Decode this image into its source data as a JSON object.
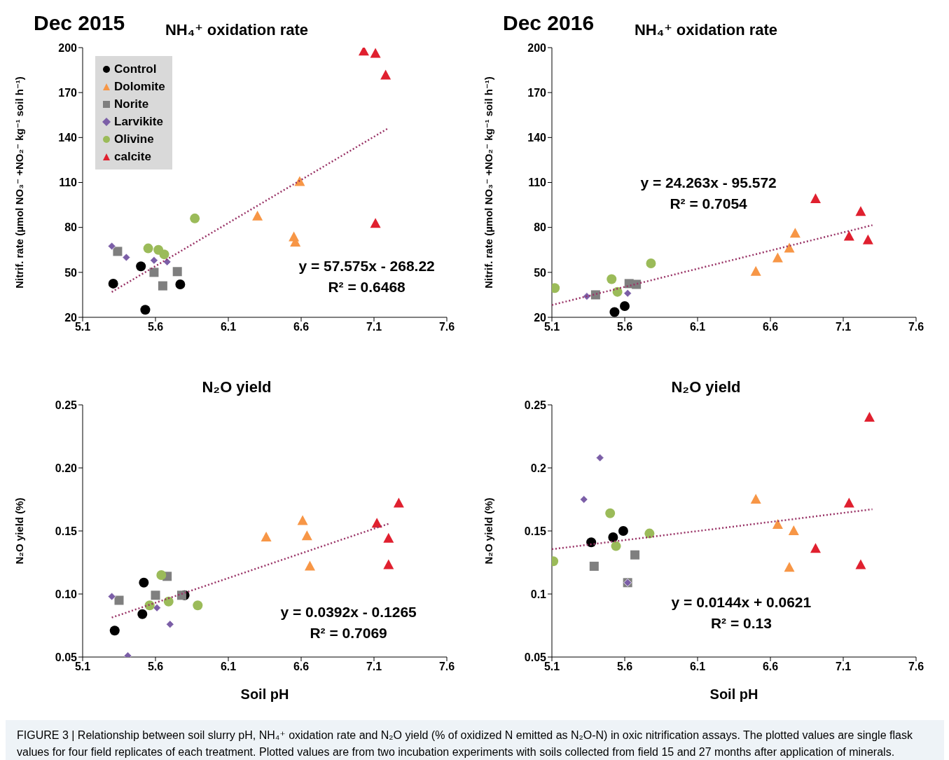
{
  "chart_data": [
    {
      "type": "scatter",
      "subtitle": "Dec 2015",
      "title": "NH₄⁺ oxidation rate",
      "ylabel": "Nitrif. rate (µmol NO₃⁻ +NO₂⁻ kg⁻¹ soil h⁻¹)",
      "xlim": [
        5.1,
        7.6
      ],
      "xticks": [
        5.1,
        5.6,
        6.1,
        6.6,
        7.1,
        7.6
      ],
      "ylim": [
        20,
        200
      ],
      "yticks": [
        20,
        50,
        80,
        110,
        140,
        170,
        200
      ],
      "legend": "top left",
      "series": [
        {
          "name": "Control",
          "color": "#000000",
          "marker": "circle",
          "x": [
            5.31,
            5.5,
            5.53,
            5.77
          ],
          "values": [
            42.5,
            54,
            25,
            42
          ]
        },
        {
          "name": "Dolomite",
          "color": "#f79646",
          "marker": "triangle",
          "x": [
            6.3,
            6.55,
            6.56,
            6.59
          ],
          "values": [
            87.5,
            73.5,
            70,
            110.5
          ]
        },
        {
          "name": "Norite",
          "color": "#7f7f7f",
          "marker": "square",
          "x": [
            5.34,
            5.59,
            5.65,
            5.75
          ],
          "values": [
            64,
            50,
            41,
            50.5
          ]
        },
        {
          "name": "Larvikite",
          "color": "#7b5ea7",
          "marker": "diamond",
          "x": [
            5.3,
            5.4,
            5.59,
            5.68
          ],
          "values": [
            67.5,
            60,
            58,
            57
          ]
        },
        {
          "name": "Olivine",
          "color": "#9bbb59",
          "marker": "circle",
          "x": [
            5.55,
            5.62,
            5.66,
            5.87
          ],
          "values": [
            66,
            65,
            62,
            86
          ]
        },
        {
          "name": "calcite",
          "color": "#e0202f",
          "marker": "triangle",
          "x": [
            7.03,
            7.11,
            7.18,
            7.11
          ],
          "values": [
            197.5,
            196,
            181.5,
            82.5
          ]
        },
        {
          "type": "line",
          "color": "#993366",
          "marker": "none",
          "line_style": "dotted",
          "x": [
            5.3,
            7.2
          ],
          "values": [
            36.9,
            146.3
          ]
        }
      ],
      "annotations": [
        "y = 57.575x - 268.22",
        "R² = 0.6468"
      ]
    },
    {
      "type": "scatter",
      "subtitle": "Dec 2016",
      "title": "NH₄⁺ oxidation rate",
      "ylabel": "Nitrif. rate (µmol NO₃⁻ +NO₂⁻ kg⁻¹ soil h⁻¹)",
      "xlim": [
        5.1,
        7.6
      ],
      "xticks": [
        5.1,
        5.6,
        6.1,
        6.6,
        7.1,
        7.6
      ],
      "ylim": [
        20,
        200
      ],
      "yticks": [
        20,
        50,
        80,
        110,
        140,
        170,
        200
      ],
      "series": [
        {
          "color": "#000000",
          "marker": "circle",
          "x": [
            5.53,
            5.6
          ],
          "values": [
            23.5,
            27.5
          ]
        },
        {
          "color": "#f79646",
          "marker": "triangle",
          "x": [
            6.5,
            6.65,
            6.73,
            6.77
          ],
          "values": [
            50.5,
            59.5,
            66,
            76
          ]
        },
        {
          "color": "#7f7f7f",
          "marker": "square",
          "x": [
            5.4,
            5.63,
            5.68
          ],
          "values": [
            35,
            42.5,
            42
          ]
        },
        {
          "color": "#7b5ea7",
          "marker": "diamond",
          "x": [
            5.34,
            5.62
          ],
          "values": [
            34,
            36
          ]
        },
        {
          "color": "#9bbb59",
          "marker": "circle",
          "x": [
            5.12,
            5.51,
            5.55,
            5.78
          ],
          "values": [
            39.5,
            45.5,
            37,
            56
          ]
        },
        {
          "color": "#e0202f",
          "marker": "triangle",
          "x": [
            6.91,
            7.22,
            7.14,
            7.27
          ],
          "values": [
            99,
            90.5,
            74,
            71.5
          ]
        },
        {
          "type": "line",
          "color": "#993366",
          "marker": "none",
          "line_style": "dotted",
          "x": [
            5.1,
            7.3
          ],
          "values": [
            28.2,
            81.5
          ]
        }
      ],
      "annotations": [
        "y = 24.263x - 95.572",
        "R² = 0.7054"
      ]
    },
    {
      "type": "scatter",
      "title": "N₂O yield",
      "xlabel": "Soil pH",
      "ylabel": "N₂O yield (%)",
      "xlim": [
        5.1,
        7.6
      ],
      "xticks": [
        5.1,
        5.6,
        6.1,
        6.6,
        7.1,
        7.6
      ],
      "ylim": [
        0.05,
        0.25
      ],
      "yticks": [
        0.05,
        {
          "value": 0.1,
          "label": "0.10"
        },
        0.15,
        {
          "value": 0.2,
          "label": "0.20"
        },
        0.25
      ],
      "series": [
        {
          "color": "#000000",
          "marker": "circle",
          "x": [
            5.32,
            5.52,
            5.51,
            5.8
          ],
          "values": [
            0.071,
            0.109,
            0.084,
            0.099
          ]
        },
        {
          "color": "#f79646",
          "marker": "triangle",
          "x": [
            6.36,
            6.61,
            6.64,
            6.66
          ],
          "values": [
            0.145,
            0.158,
            0.146,
            0.122
          ]
        },
        {
          "color": "#7f7f7f",
          "marker": "square",
          "x": [
            5.35,
            5.6,
            5.68,
            5.78
          ],
          "values": [
            0.095,
            0.099,
            0.114,
            0.099
          ]
        },
        {
          "color": "#7b5ea7",
          "marker": "diamond",
          "x": [
            5.3,
            5.41,
            5.61,
            5.7
          ],
          "values": [
            0.098,
            0.051,
            0.089,
            0.076
          ]
        },
        {
          "color": "#9bbb59",
          "marker": "circle",
          "x": [
            5.56,
            5.64,
            5.69,
            5.89
          ],
          "values": [
            0.091,
            0.115,
            0.094,
            0.091
          ]
        },
        {
          "color": "#e0202f",
          "marker": "triangle",
          "x": [
            7.12,
            7.27,
            7.2,
            7.2
          ],
          "values": [
            0.156,
            0.172,
            0.144,
            0.123
          ]
        },
        {
          "type": "line",
          "color": "#993366",
          "marker": "none",
          "line_style": "dotted",
          "x": [
            5.3,
            7.2
          ],
          "values": [
            0.0813,
            0.1557
          ]
        }
      ],
      "annotations": [
        "y = 0.0392x - 0.1265",
        "R² = 0.7069"
      ]
    },
    {
      "type": "scatter",
      "title": "N₂O yield",
      "xlabel": "Soil pH",
      "ylabel": "N₂O yield (%)",
      "xlim": [
        5.1,
        7.6
      ],
      "xticks": [
        5.1,
        5.6,
        6.1,
        6.6,
        7.1,
        7.6
      ],
      "ylim": [
        0.05,
        0.25
      ],
      "yticks": [
        0.05,
        0.1,
        0.15,
        0.2,
        0.25
      ],
      "series": [
        {
          "color": "#000000",
          "marker": "circle",
          "x": [
            5.37,
            5.52,
            5.59
          ],
          "values": [
            0.141,
            0.145,
            0.15
          ]
        },
        {
          "color": "#f79646",
          "marker": "triangle",
          "x": [
            6.5,
            6.65,
            6.76,
            6.73
          ],
          "values": [
            0.175,
            0.155,
            0.15,
            0.121
          ]
        },
        {
          "color": "#7f7f7f",
          "marker": "square",
          "x": [
            5.39,
            5.67,
            5.62
          ],
          "values": [
            0.122,
            0.131,
            0.109
          ]
        },
        {
          "color": "#7b5ea7",
          "marker": "diamond",
          "x": [
            5.32,
            5.43,
            5.62
          ],
          "values": [
            0.175,
            0.208,
            0.109
          ]
        },
        {
          "color": "#9bbb59",
          "marker": "circle",
          "x": [
            5.11,
            5.5,
            5.54,
            5.77
          ],
          "values": [
            0.126,
            0.164,
            0.138,
            0.148
          ]
        },
        {
          "color": "#e0202f",
          "marker": "triangle",
          "x": [
            7.28,
            7.14,
            6.91,
            7.22
          ],
          "values": [
            0.24,
            0.172,
            0.136,
            0.123
          ]
        },
        {
          "type": "line",
          "color": "#993366",
          "marker": "none",
          "line_style": "dotted",
          "x": [
            5.1,
            7.3
          ],
          "values": [
            0.1355,
            0.1672
          ]
        }
      ],
      "annotations": [
        "y = 0.0144x + 0.0621",
        "R² = 0.13"
      ]
    },
    {
      "type": "other",
      "annotations": [
        "FIGURE 3 | Relationship between soil slurry pH, NH₄⁺ oxidation rate and N₂O yield (% of oxidized N emitted as N₂O-N) in oxic nitrification assays. The plotted values are single flask values for four field replicates of each treatment. Plotted values are from two incubation experiments with soils collected from field 15 and 27 months after application of minerals."
      ]
    }
  ]
}
